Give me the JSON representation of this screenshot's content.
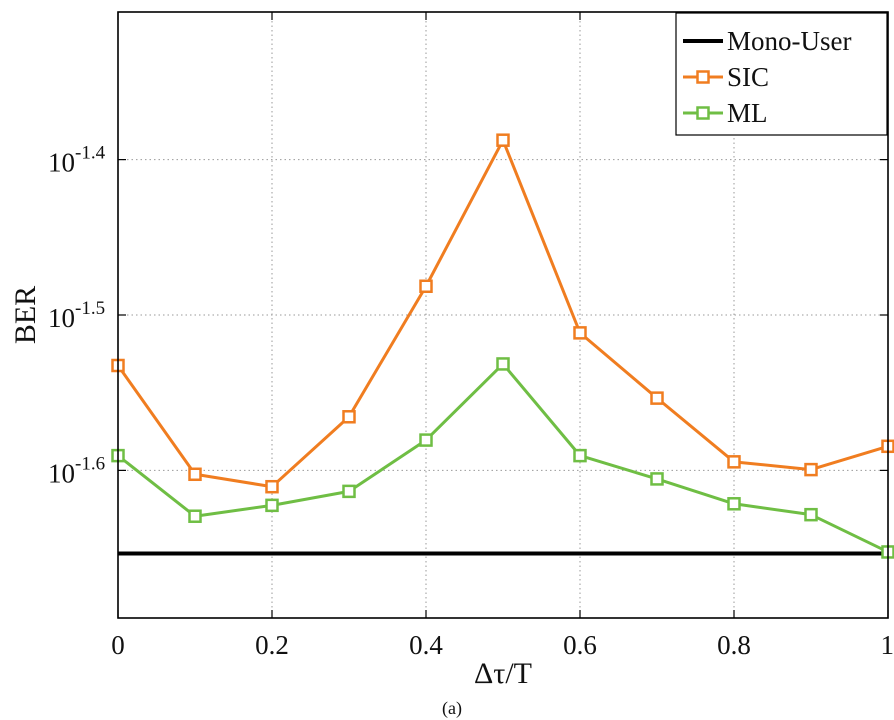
{
  "chart_data": {
    "type": "line",
    "xlabel": "Δτ/T",
    "ylabel": "BER",
    "caption": "(a)",
    "y_scale": "log10",
    "x": [
      0,
      0.1,
      0.2,
      0.3,
      0.4,
      0.5,
      0.6,
      0.7,
      0.8,
      0.9,
      1
    ],
    "xlim": [
      0,
      1
    ],
    "ylim_log10": [
      -1.695,
      -1.305
    ],
    "x_ticks": [
      {
        "value": 0,
        "label": "0"
      },
      {
        "value": 0.2,
        "label": "0.2"
      },
      {
        "value": 0.4,
        "label": "0.4"
      },
      {
        "value": 0.6,
        "label": "0.6"
      },
      {
        "value": 0.8,
        "label": "0.8"
      },
      {
        "value": 1,
        "label": "1"
      }
    ],
    "y_ticks": [
      {
        "log10": -1.4,
        "base": "10",
        "exp": "-1.4"
      },
      {
        "log10": -1.5,
        "base": "10",
        "exp": "-1.5"
      },
      {
        "log10": -1.6,
        "base": "10",
        "exp": "-1.6"
      }
    ],
    "grid": true,
    "legend_position": "top-right",
    "series": [
      {
        "name": "Mono-User",
        "color": "#000000",
        "marker": "none",
        "log10_values": [
          -1.6535,
          -1.6535,
          -1.6535,
          -1.6535,
          -1.6535,
          -1.6535,
          -1.6535,
          -1.6535,
          -1.6535,
          -1.6535,
          -1.6535
        ]
      },
      {
        "name": "SIC",
        "color": "#f07d20",
        "marker": "square",
        "log10_values": [
          -1.5325,
          -1.6025,
          -1.6105,
          -1.5655,
          -1.4815,
          -1.3875,
          -1.5115,
          -1.5535,
          -1.5945,
          -1.5995,
          -1.5845
        ]
      },
      {
        "name": "ML",
        "color": "#6fbe44",
        "marker": "square",
        "log10_values": [
          -1.5905,
          -1.6295,
          -1.6225,
          -1.6135,
          -1.5805,
          -1.5315,
          -1.5905,
          -1.6055,
          -1.6215,
          -1.6285,
          -1.6525
        ]
      }
    ]
  }
}
